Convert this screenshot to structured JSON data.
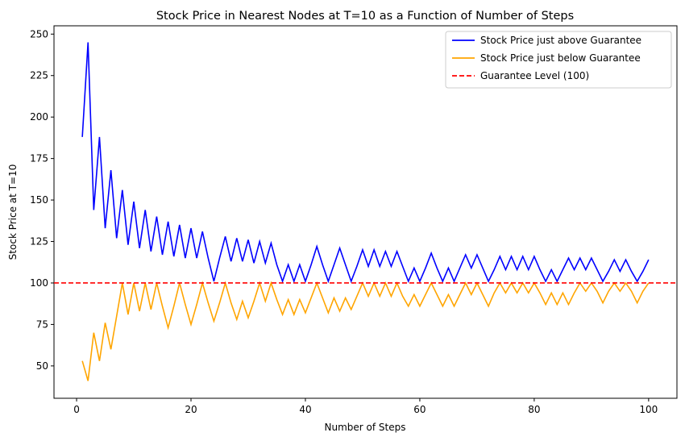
{
  "chart_data": {
    "type": "line",
    "title": "Stock Price in Nearest Nodes at T=10 as a Function of Number of Steps",
    "xlabel": "Number of Steps",
    "ylabel": "Stock Price at T=10",
    "xlim": [
      -3.95,
      104.95
    ],
    "ylim": [
      30.5,
      255
    ],
    "xticks": [
      0,
      20,
      40,
      60,
      80,
      100
    ],
    "yticks": [
      50,
      75,
      100,
      125,
      150,
      175,
      200,
      225,
      250
    ],
    "grid": false,
    "legend_position": "top-right",
    "x": [
      1,
      2,
      3,
      4,
      5,
      6,
      7,
      8,
      9,
      10,
      11,
      12,
      13,
      14,
      15,
      16,
      17,
      18,
      19,
      20,
      21,
      22,
      23,
      24,
      25,
      26,
      27,
      28,
      29,
      30,
      31,
      32,
      33,
      34,
      35,
      36,
      37,
      38,
      39,
      40,
      41,
      42,
      43,
      44,
      45,
      46,
      47,
      48,
      49,
      50,
      51,
      52,
      53,
      54,
      55,
      56,
      57,
      58,
      59,
      60,
      61,
      62,
      63,
      64,
      65,
      66,
      67,
      68,
      69,
      70,
      71,
      72,
      73,
      74,
      75,
      76,
      77,
      78,
      79,
      80,
      81,
      82,
      83,
      84,
      85,
      86,
      87,
      88,
      89,
      90,
      91,
      92,
      93,
      94,
      95,
      96,
      97,
      98,
      99,
      100
    ],
    "series": [
      {
        "name": "Stock Price just above Guarantee",
        "color": "#0000ff",
        "style": "solid",
        "values": [
          188,
          245,
          144,
          188,
          133,
          168,
          127,
          156,
          123,
          149,
          121,
          144,
          119,
          140,
          117,
          137,
          116,
          135,
          115,
          133,
          115,
          131,
          115,
          101,
          115,
          128,
          113,
          127,
          113,
          126,
          112,
          125,
          112,
          124,
          111,
          101,
          111,
          101,
          111,
          101,
          111,
          122,
          111,
          101,
          111,
          121,
          111,
          101,
          110,
          120,
          110,
          120,
          110,
          119,
          110,
          119,
          110,
          101,
          109,
          101,
          109,
          118,
          109,
          101,
          109,
          101,
          109,
          117,
          109,
          117,
          109,
          101,
          108,
          116,
          108,
          116,
          108,
          116,
          108,
          116,
          108,
          101,
          108,
          101,
          108,
          115,
          108,
          115,
          108,
          115,
          108,
          101,
          107,
          114,
          107,
          114,
          107,
          101,
          107,
          114
        ]
      },
      {
        "name": "Stock Price just below Guarantee",
        "color": "#ffa500",
        "style": "solid",
        "values": [
          53,
          41,
          70,
          53,
          76,
          60,
          80,
          100,
          81,
          100,
          83,
          100,
          84,
          100,
          86,
          73,
          86,
          100,
          87,
          75,
          87,
          100,
          88,
          77,
          88,
          100,
          88,
          78,
          89,
          79,
          89,
          100,
          89,
          100,
          90,
          81,
          90,
          81,
          90,
          82,
          91,
          100,
          91,
          82,
          91,
          83,
          91,
          84,
          92,
          100,
          92,
          100,
          92,
          100,
          92,
          100,
          92,
          86,
          93,
          86,
          93,
          100,
          93,
          86,
          93,
          86,
          93,
          100,
          93,
          100,
          93,
          86,
          94,
          100,
          94,
          100,
          94,
          100,
          94,
          100,
          94,
          87,
          94,
          87,
          94,
          87,
          94,
          100,
          95,
          100,
          95,
          88,
          95,
          100,
          95,
          100,
          95,
          88,
          95,
          100
        ]
      }
    ],
    "reference_lines": [
      {
        "name": "Guarantee Level (100)",
        "y": 100,
        "color": "#ff0000",
        "style": "dashed"
      }
    ]
  }
}
